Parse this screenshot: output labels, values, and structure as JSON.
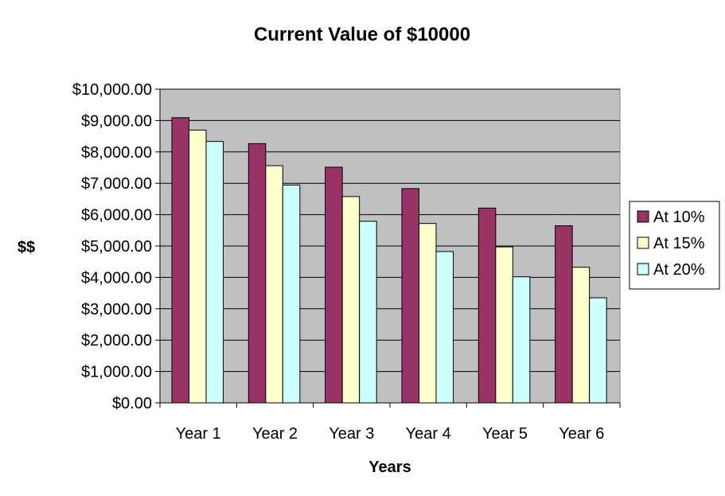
{
  "chart_data": {
    "type": "bar",
    "title": "Current Value of $10000",
    "xlabel": "Years",
    "ylabel": "$$",
    "categories": [
      "Year 1",
      "Year 2",
      "Year 3",
      "Year 4",
      "Year 5",
      "Year 6"
    ],
    "series": [
      {
        "name": "At 10%",
        "color": "#993366",
        "values": [
          9091,
          8264,
          7513,
          6830,
          6209,
          5645
        ]
      },
      {
        "name": "At 15%",
        "color": "#FFFFCC",
        "values": [
          8696,
          7561,
          6575,
          5718,
          4972,
          4323
        ]
      },
      {
        "name": "At 20%",
        "color": "#CCFFFF",
        "values": [
          8333,
          6944,
          5787,
          4823,
          4019,
          3349
        ]
      }
    ],
    "ylim": [
      0,
      10000
    ],
    "yticks": [
      0,
      1000,
      2000,
      3000,
      4000,
      5000,
      6000,
      7000,
      8000,
      9000,
      10000
    ],
    "ytick_labels": [
      "$0.00",
      "$1,000.00",
      "$2,000.00",
      "$3,000.00",
      "$4,000.00",
      "$5,000.00",
      "$6,000.00",
      "$7,000.00",
      "$8,000.00",
      "$9,000.00",
      "$10,000.00"
    ],
    "grid": true,
    "plot_background": "#C0C0C0",
    "legend_position": "right"
  }
}
